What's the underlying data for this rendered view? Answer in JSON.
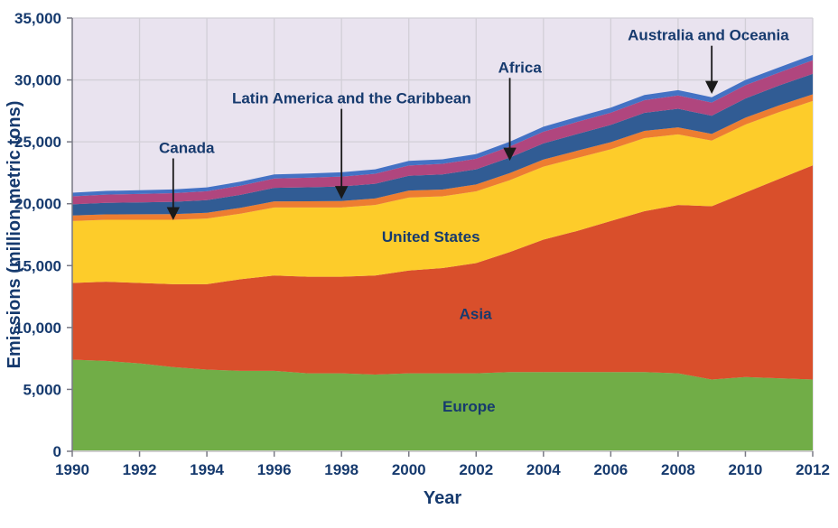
{
  "chart": {
    "type": "area-stacked",
    "background_color": "#ffffff",
    "plot_background_color": "#e9e3ef",
    "grid_color": "#d2cfd7",
    "axis_line_color": "#7a7a85",
    "text_color": "#163a6e",
    "title_fontsize": 18,
    "tick_fontsize": 17,
    "label_fontsize": 17,
    "axis_title_fontsize": 20,
    "x_axis_title": "Year",
    "y_axis_title": "Emissions (million metric tons)",
    "xlim": [
      1990,
      2012
    ],
    "ylim": [
      0,
      35000
    ],
    "x_ticks": [
      1990,
      1992,
      1994,
      1996,
      1998,
      2000,
      2002,
      2004,
      2006,
      2008,
      2010,
      2012
    ],
    "y_ticks": [
      0,
      5000,
      10000,
      15000,
      20000,
      25000,
      30000,
      35000
    ],
    "x_year_values": [
      1990,
      1991,
      1992,
      1993,
      1994,
      1995,
      1996,
      1997,
      1998,
      1999,
      2000,
      2001,
      2002,
      2003,
      2004,
      2005,
      2006,
      2007,
      2008,
      2009,
      2010,
      2011,
      2012
    ],
    "stack_order_bottom_to_top": [
      "Europe",
      "Asia",
      "United States",
      "Canada",
      "Latin America and the Caribbean",
      "Africa",
      "Australia and Oceania"
    ],
    "series": {
      "Europe": {
        "color": "#71ad47",
        "values": [
          7400,
          7300,
          7100,
          6800,
          6600,
          6500,
          6500,
          6300,
          6300,
          6200,
          6300,
          6300,
          6300,
          6400,
          6400,
          6400,
          6400,
          6400,
          6300,
          5800,
          6000,
          5900,
          5800
        ]
      },
      "Asia": {
        "color": "#d94f2b",
        "values": [
          6200,
          6400,
          6500,
          6700,
          6900,
          7400,
          7700,
          7800,
          7800,
          8000,
          8300,
          8500,
          8900,
          9700,
          10700,
          11400,
          12200,
          13000,
          13600,
          14000,
          14900,
          16100,
          17300
        ]
      },
      "United States": {
        "color": "#fdcc2a",
        "values": [
          5000,
          5000,
          5100,
          5200,
          5300,
          5300,
          5500,
          5600,
          5600,
          5700,
          5900,
          5800,
          5800,
          5800,
          5900,
          5900,
          5800,
          5900,
          5700,
          5300,
          5500,
          5400,
          5200
        ]
      },
      "Canada": {
        "color": "#ed7d31",
        "values": [
          450,
          440,
          450,
          460,
          470,
          470,
          490,
          500,
          520,
          530,
          560,
          550,
          560,
          580,
          570,
          580,
          570,
          590,
          570,
          540,
          550,
          550,
          540
        ]
      },
      "Latin America and the Caribbean": {
        "color": "#315c94",
        "values": [
          900,
          930,
          960,
          990,
          1020,
          1050,
          1090,
          1130,
          1170,
          1180,
          1200,
          1220,
          1220,
          1250,
          1300,
          1350,
          1400,
          1450,
          1500,
          1470,
          1550,
          1600,
          1650
        ]
      },
      "Africa": {
        "color": "#b0467e",
        "values": [
          650,
          670,
          680,
          700,
          720,
          740,
          760,
          770,
          800,
          810,
          830,
          850,
          850,
          900,
          950,
          980,
          980,
          1020,
          1080,
          1060,
          1080,
          1050,
          1100
        ]
      },
      "Australia and Oceania": {
        "color": "#4472c4",
        "values": [
          290,
          295,
          300,
          305,
          310,
          320,
          330,
          340,
          350,
          360,
          370,
          370,
          380,
          380,
          400,
          400,
          410,
          420,
          430,
          430,
          420,
          420,
          430
        ]
      }
    },
    "inside_labels": [
      {
        "text": "United States",
        "x_year": 1999.2,
        "y_value": 16900
      },
      {
        "text": "Asia",
        "x_year": 2001.5,
        "y_value": 10700
      },
      {
        "text": "Europe",
        "x_year": 2001.0,
        "y_value": 3200
      }
    ],
    "callouts": [
      {
        "text": "Canada",
        "label_x_year": 1993.4,
        "label_y_value": 24100,
        "arrow_to_x_year": 1993.0,
        "arrow_to_y_value": 19200
      },
      {
        "text": "Latin America and the Caribbean",
        "label_x_year": 1998.3,
        "label_y_value": 28100,
        "arrow_to_x_year": 1998.0,
        "arrow_to_y_value": 20900
      },
      {
        "text": "Africa",
        "label_x_year": 2003.3,
        "label_y_value": 30600,
        "arrow_to_x_year": 2003.0,
        "arrow_to_y_value": 24000
      },
      {
        "text": "Australia and Oceania",
        "label_x_year": 2008.9,
        "label_y_value": 33200,
        "arrow_to_x_year": 2009.0,
        "arrow_to_y_value": 29400
      }
    ]
  }
}
